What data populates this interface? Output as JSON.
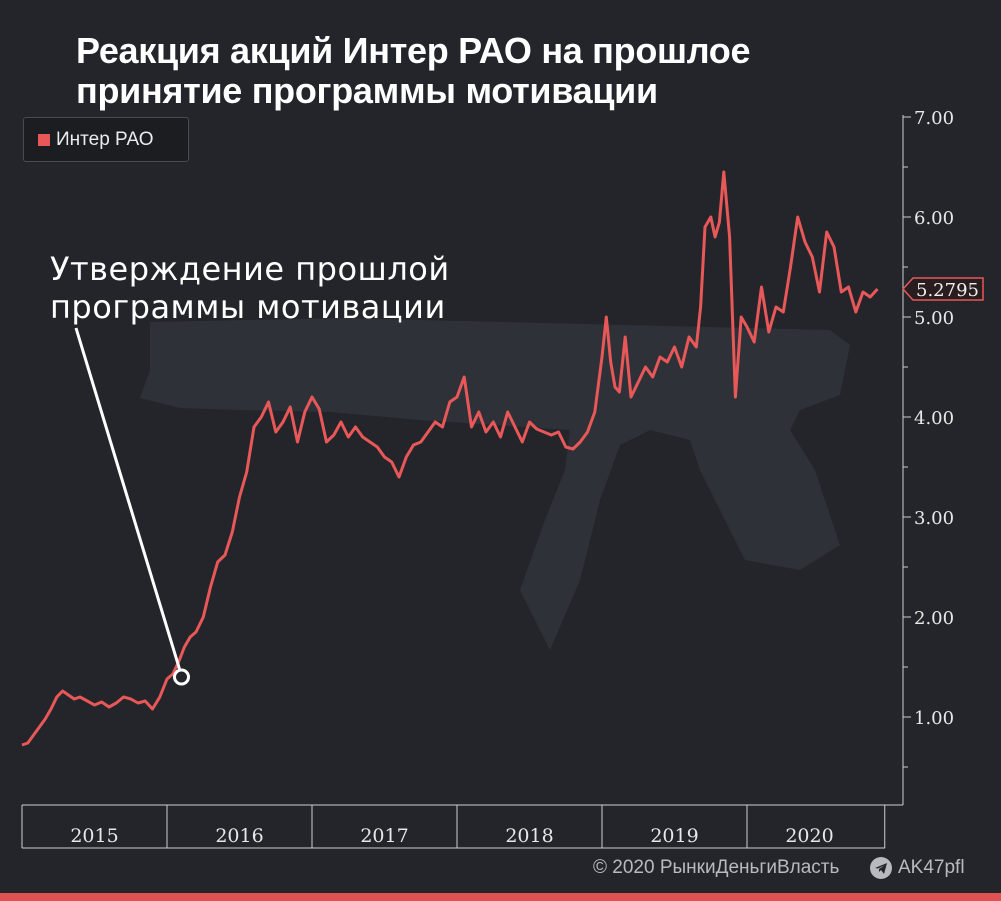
{
  "title": {
    "line1": "Реакция акций Интер РАО на прошлое",
    "line2": "принятие программы мотивации"
  },
  "legend": {
    "label": "Интер РАО",
    "color": "#e85858"
  },
  "annotation": {
    "line1": "Утверждение прошлой",
    "line2": "программы мотивации",
    "x": 2016.1,
    "y": 1.4
  },
  "last_price_label": "5.2795",
  "footer": {
    "copyright": "© 2020  РынкиДеньгиВласть",
    "telegram": "AK47pfl",
    "telegram_icon": "telegram-icon"
  },
  "colors": {
    "background": "#23252b",
    "line": "#e85858",
    "accent_bar": "#e05252",
    "axis": "#cfcfcf"
  },
  "chart_data": {
    "type": "line",
    "title": "Реакция акций Интер РАО на прошлое принятие программы мотивации",
    "xlabel": "",
    "ylabel": "",
    "x_categories": [
      "2015",
      "2016",
      "2017",
      "2018",
      "2019",
      "2020"
    ],
    "y_ticks": [
      "1.00",
      "2.00",
      "3.00",
      "4.00",
      "5.00",
      "6.00",
      "7.00"
    ],
    "ylim": [
      0.2,
      7.1
    ],
    "xlim": [
      2015.0,
      2020.95
    ],
    "grid": false,
    "legend_position": "top-left",
    "series": [
      {
        "name": "Интер РАО",
        "x": [
          2015.0,
          2015.04,
          2015.08,
          2015.12,
          2015.16,
          2015.2,
          2015.24,
          2015.28,
          2015.32,
          2015.36,
          2015.4,
          2015.45,
          2015.5,
          2015.55,
          2015.6,
          2015.65,
          2015.7,
          2015.75,
          2015.8,
          2015.85,
          2015.9,
          2015.95,
          2016.0,
          2016.04,
          2016.08,
          2016.12,
          2016.16,
          2016.2,
          2016.25,
          2016.3,
          2016.35,
          2016.4,
          2016.45,
          2016.5,
          2016.55,
          2016.6,
          2016.65,
          2016.7,
          2016.75,
          2016.8,
          2016.85,
          2016.9,
          2016.95,
          2017.0,
          2017.05,
          2017.1,
          2017.15,
          2017.2,
          2017.25,
          2017.3,
          2017.35,
          2017.4,
          2017.45,
          2017.5,
          2017.55,
          2017.6,
          2017.65,
          2017.7,
          2017.75,
          2017.8,
          2017.85,
          2017.9,
          2017.95,
          2018.0,
          2018.05,
          2018.1,
          2018.15,
          2018.2,
          2018.25,
          2018.3,
          2018.35,
          2018.4,
          2018.45,
          2018.5,
          2018.55,
          2018.6,
          2018.65,
          2018.7,
          2018.75,
          2018.8,
          2018.85,
          2018.9,
          2018.95,
          2019.0,
          2019.03,
          2019.06,
          2019.09,
          2019.12,
          2019.16,
          2019.2,
          2019.25,
          2019.3,
          2019.35,
          2019.4,
          2019.45,
          2019.5,
          2019.55,
          2019.6,
          2019.65,
          2019.68,
          2019.71,
          2019.75,
          2019.78,
          2019.81,
          2019.84,
          2019.88,
          2019.92,
          2019.96,
          2020.0,
          2020.05,
          2020.1,
          2020.15,
          2020.2,
          2020.25,
          2020.3,
          2020.35,
          2020.4,
          2020.45,
          2020.5,
          2020.55,
          2020.6,
          2020.65,
          2020.7,
          2020.75,
          2020.8,
          2020.85,
          2020.9
        ],
        "y": [
          0.72,
          0.74,
          0.82,
          0.9,
          0.98,
          1.08,
          1.2,
          1.26,
          1.22,
          1.18,
          1.2,
          1.16,
          1.12,
          1.15,
          1.1,
          1.14,
          1.2,
          1.18,
          1.14,
          1.16,
          1.08,
          1.2,
          1.38,
          1.43,
          1.55,
          1.7,
          1.8,
          1.85,
          2.0,
          2.3,
          2.55,
          2.62,
          2.85,
          3.2,
          3.45,
          3.9,
          4.0,
          4.15,
          3.85,
          3.95,
          4.1,
          3.75,
          4.05,
          4.2,
          4.08,
          3.75,
          3.82,
          3.95,
          3.8,
          3.9,
          3.8,
          3.75,
          3.7,
          3.6,
          3.55,
          3.4,
          3.6,
          3.72,
          3.75,
          3.85,
          3.95,
          3.9,
          4.15,
          4.2,
          4.4,
          3.9,
          4.05,
          3.85,
          3.95,
          3.8,
          4.05,
          3.9,
          3.75,
          3.95,
          3.88,
          3.85,
          3.82,
          3.85,
          3.7,
          3.68,
          3.75,
          3.85,
          4.05,
          4.6,
          5.0,
          4.55,
          4.3,
          4.25,
          4.8,
          4.2,
          4.35,
          4.5,
          4.4,
          4.6,
          4.55,
          4.7,
          4.5,
          4.8,
          4.7,
          5.1,
          5.9,
          6.0,
          5.8,
          5.95,
          6.45,
          5.8,
          4.2,
          5.0,
          4.9,
          4.75,
          5.3,
          4.85,
          5.1,
          5.05,
          5.5,
          6.0,
          5.75,
          5.6,
          5.25,
          5.85,
          5.7,
          5.25,
          5.3,
          5.05,
          5.25,
          5.2,
          5.28
        ]
      }
    ]
  }
}
